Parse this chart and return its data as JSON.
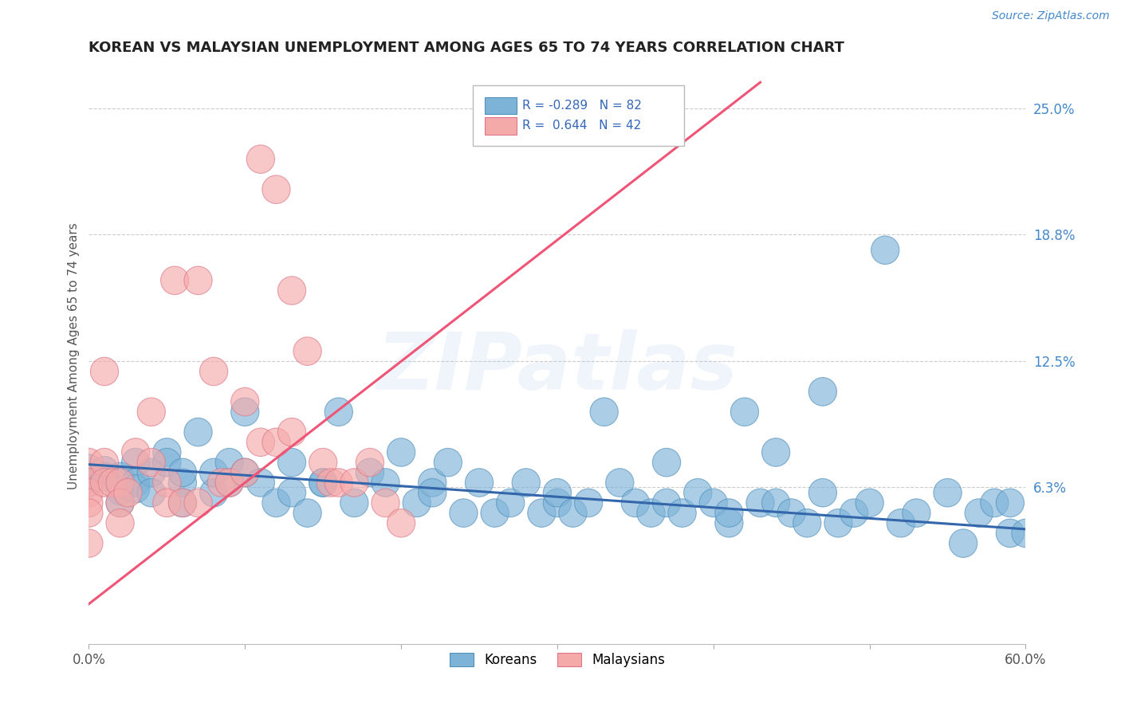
{
  "title": "KOREAN VS MALAYSIAN UNEMPLOYMENT AMONG AGES 65 TO 74 YEARS CORRELATION CHART",
  "source": "Source: ZipAtlas.com",
  "ylabel": "Unemployment Among Ages 65 to 74 years",
  "xlim": [
    0.0,
    0.6
  ],
  "ylim": [
    -0.015,
    0.27
  ],
  "ytick_positions": [
    0.063,
    0.125,
    0.188,
    0.25
  ],
  "ytick_labels": [
    "6.3%",
    "12.5%",
    "18.8%",
    "25.0%"
  ],
  "korean_color": "#7EB3D8",
  "korean_edge_color": "#5090BB",
  "malaysian_color": "#F5AAAA",
  "malaysian_edge_color": "#DD7788",
  "korean_line_color": "#3366AA",
  "malaysian_line_color": "#EE5577",
  "korean_R": -0.289,
  "korean_N": 82,
  "malaysian_R": 0.644,
  "malaysian_N": 42,
  "watermark": "ZIPatlas",
  "legend_label_korean": "Koreans",
  "legend_label_malaysian": "Malaysians",
  "korean_line_x": [
    0.0,
    0.6
  ],
  "korean_line_y": [
    0.074,
    0.042
  ],
  "malaysian_line_x": [
    0.0,
    0.43
  ],
  "malaysian_line_y": [
    0.005,
    0.263
  ],
  "korean_points_x": [
    0.0,
    0.0,
    0.01,
    0.01,
    0.02,
    0.02,
    0.02,
    0.03,
    0.03,
    0.03,
    0.04,
    0.04,
    0.05,
    0.05,
    0.06,
    0.06,
    0.06,
    0.07,
    0.08,
    0.08,
    0.09,
    0.09,
    0.1,
    0.1,
    0.11,
    0.12,
    0.13,
    0.13,
    0.14,
    0.15,
    0.15,
    0.16,
    0.17,
    0.18,
    0.19,
    0.2,
    0.21,
    0.22,
    0.22,
    0.23,
    0.24,
    0.25,
    0.26,
    0.27,
    0.28,
    0.29,
    0.3,
    0.3,
    0.31,
    0.32,
    0.33,
    0.34,
    0.35,
    0.36,
    0.37,
    0.37,
    0.38,
    0.39,
    0.4,
    0.41,
    0.41,
    0.42,
    0.43,
    0.44,
    0.44,
    0.45,
    0.46,
    0.47,
    0.47,
    0.48,
    0.49,
    0.5,
    0.51,
    0.52,
    0.53,
    0.55,
    0.56,
    0.57,
    0.58,
    0.59,
    0.59,
    0.6
  ],
  "korean_points_y": [
    0.072,
    0.065,
    0.068,
    0.071,
    0.068,
    0.061,
    0.055,
    0.075,
    0.065,
    0.062,
    0.07,
    0.06,
    0.08,
    0.075,
    0.065,
    0.055,
    0.07,
    0.09,
    0.06,
    0.07,
    0.075,
    0.065,
    0.1,
    0.07,
    0.065,
    0.055,
    0.075,
    0.06,
    0.05,
    0.065,
    0.065,
    0.1,
    0.055,
    0.07,
    0.065,
    0.08,
    0.055,
    0.065,
    0.06,
    0.075,
    0.05,
    0.065,
    0.05,
    0.055,
    0.065,
    0.05,
    0.055,
    0.06,
    0.05,
    0.055,
    0.1,
    0.065,
    0.055,
    0.05,
    0.075,
    0.055,
    0.05,
    0.06,
    0.055,
    0.045,
    0.05,
    0.1,
    0.055,
    0.055,
    0.08,
    0.05,
    0.045,
    0.11,
    0.06,
    0.045,
    0.05,
    0.055,
    0.18,
    0.045,
    0.05,
    0.06,
    0.035,
    0.05,
    0.055,
    0.04,
    0.055,
    0.04
  ],
  "malaysian_points_x": [
    0.0,
    0.0,
    0.0,
    0.0,
    0.0,
    0.0,
    0.01,
    0.01,
    0.01,
    0.015,
    0.02,
    0.02,
    0.02,
    0.025,
    0.03,
    0.04,
    0.04,
    0.05,
    0.05,
    0.055,
    0.06,
    0.07,
    0.07,
    0.08,
    0.085,
    0.09,
    0.1,
    0.1,
    0.11,
    0.11,
    0.12,
    0.12,
    0.13,
    0.13,
    0.14,
    0.15,
    0.155,
    0.16,
    0.17,
    0.18,
    0.19,
    0.2
  ],
  "malaysian_points_y": [
    0.075,
    0.065,
    0.06,
    0.055,
    0.05,
    0.035,
    0.12,
    0.075,
    0.065,
    0.065,
    0.065,
    0.055,
    0.045,
    0.06,
    0.08,
    0.1,
    0.075,
    0.065,
    0.055,
    0.165,
    0.055,
    0.165,
    0.055,
    0.12,
    0.065,
    0.065,
    0.105,
    0.07,
    0.225,
    0.085,
    0.21,
    0.085,
    0.16,
    0.09,
    0.13,
    0.075,
    0.065,
    0.065,
    0.065,
    0.075,
    0.055,
    0.045
  ]
}
